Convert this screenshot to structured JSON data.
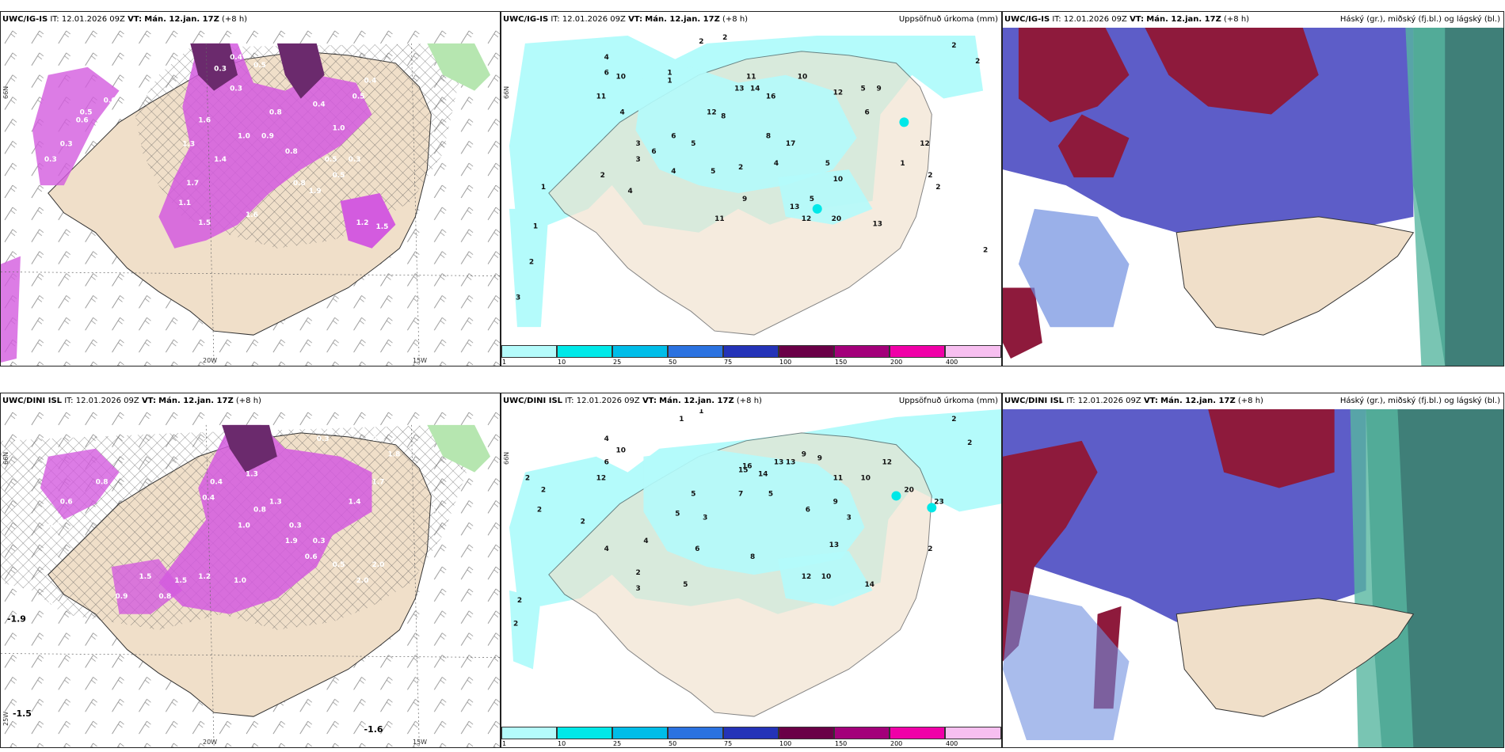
{
  "panels": [
    {
      "model": "UWC/IG-IS",
      "it_label": "IT:",
      "it": "12.01.2026 09Z",
      "vt_label": "VT:",
      "vt": "Mán. 12.jan. 17Z",
      "lead": "(+8 h)",
      "right_title": ""
    },
    {
      "model": "UWC/IG-IS",
      "it_label": "IT:",
      "it": "12.01.2026 09Z",
      "vt_label": "VT:",
      "vt": "Mán. 12.jan. 17Z",
      "lead": "(+8 h)",
      "right_title": "Uppsöfnuð úrkoma (mm)"
    },
    {
      "model": "UWC/IG-IS",
      "it_label": "IT:",
      "it": "12.01.2026 09Z",
      "vt_label": "VT:",
      "vt": "Mán. 12.jan. 17Z",
      "lead": "(+8 h)",
      "right_title": "Háský (gr.), miðský (fj.bl.) og lágský (bl.)"
    },
    {
      "model": "UWC/DINI ISL",
      "it_label": "IT:",
      "it": "12.01.2026 09Z",
      "vt_label": "VT:",
      "vt": "Mán. 12.jan. 17Z",
      "lead": "(+8 h)",
      "right_title": ""
    },
    {
      "model": "UWC/DINI ISL",
      "it_label": "IT:",
      "it": "12.01.2026 09Z",
      "vt_label": "VT:",
      "vt": "Mán. 12.jan. 17Z",
      "lead": "(+8 h)",
      "right_title": "Uppsöfnuð úrkoma (mm)"
    },
    {
      "model": "UWC/DINI ISL",
      "it_label": "IT:",
      "it": "12.01.2026 09Z",
      "vt_label": "VT:",
      "vt": "Mán. 12.jan. 17Z",
      "lead": "(+8 h)",
      "right_title": "Háský (gr.), miðský (fj.bl.) og lágský (bl.)"
    }
  ],
  "axis": {
    "lon_20": "20W",
    "lon_15": "15W",
    "lat_66": "66N",
    "lon_25": "25W"
  },
  "colorbar": {
    "labels": [
      "1",
      "10",
      "25",
      "50",
      "75",
      "100",
      "150",
      "200",
      "400"
    ],
    "colors": [
      "#b4fbfb",
      "#00e8e8",
      "#00bde8",
      "#2b72e0",
      "#2433b8",
      "#6a0047",
      "#a3007a",
      "#f000a8",
      "#f7bff0"
    ]
  },
  "precip_top": [
    "2",
    "2",
    "2",
    "2",
    "4",
    "6",
    "10",
    "1",
    "1",
    "11",
    "4",
    "12",
    "16",
    "13",
    "14",
    "11",
    "10",
    "12",
    "9",
    "8",
    "5",
    "6",
    "12",
    "6",
    "3",
    "5",
    "4",
    "6",
    "5",
    "17",
    "8",
    "4",
    "2",
    "5",
    "10",
    "2",
    "13",
    "5",
    "1",
    "3",
    "2",
    "4",
    "9",
    "11",
    "12",
    "20",
    "13",
    "1",
    "2",
    "3",
    "2",
    "1",
    "2"
  ],
  "precip_bottom": [
    "1",
    "1",
    "2",
    "2",
    "4",
    "6",
    "10",
    "12",
    "2",
    "2",
    "2",
    "5",
    "13",
    "13",
    "9",
    "16",
    "15",
    "14",
    "12",
    "10",
    "11",
    "9",
    "20",
    "23",
    "7",
    "5",
    "3",
    "9",
    "3",
    "5",
    "6",
    "13",
    "2",
    "4",
    "8",
    "12",
    "14",
    "10",
    "6",
    "2",
    "2",
    "2",
    "3",
    "5",
    "4",
    "2"
  ],
  "rain_top": [
    "0.4",
    "0.3",
    "0.5",
    "0.3",
    "0.5",
    "0.4",
    "1.0",
    "0.8",
    "0.4",
    "0.5",
    "1.5",
    "1.6",
    "0.8",
    "0.3",
    "0.5",
    "1.9",
    "1.7",
    "1.4",
    "1.0",
    "1.2",
    "1.5",
    "1.6",
    "1.3",
    "0.6",
    "0.3",
    "0.6",
    "0.9",
    "0.8",
    "1.1",
    "0.5",
    "0.3"
  ],
  "rain_bottom": [
    "0.3",
    "0.2",
    "0.3",
    "0.4",
    "0.6",
    "1.5",
    "2.0",
    "1.3",
    "0.8",
    "1.0",
    "0.3",
    "0.6",
    "1.3",
    "0.5",
    "1.0",
    "2.0",
    "0.8",
    "0.5",
    "1.4",
    "1.7",
    "1.8",
    "0.3",
    "0.4",
    "0.8",
    "1.2",
    "0.9",
    "1.5",
    "1.9",
    "0.6",
    "1.1"
  ],
  "temp_labels": [
    "-1.6",
    "-1.5",
    "-1.9"
  ]
}
